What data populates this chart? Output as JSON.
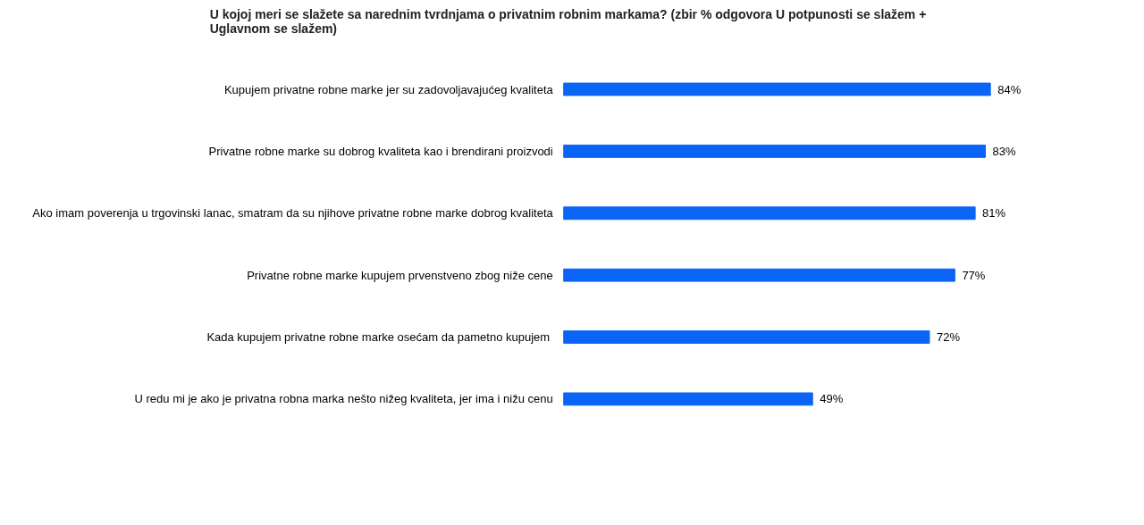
{
  "chart_data": {
    "type": "bar",
    "orientation": "horizontal",
    "title": "U kojoj meri se slažete sa narednim tvrdnjama o privatnim robnim markama? (zbir % odgovora U potpunosti se slažem + Uglavnom se slažem)",
    "categories": [
      "Kupujem privatne robne marke jer su zadovoljavajućeg kvaliteta",
      "Privatne robne marke su dobrog kvaliteta kao i brendirani proizvodi",
      "Ako imam poverenja u trgovinski lanac, smatram da su njihove privatne robne marke dobrog kvaliteta",
      "Privatne robne marke kupujem prvenstveno zbog niže cene",
      "Kada kupujem privatne robne marke osećam  da pametno kupujem",
      "U redu mi je ako je privatna robna marka nešto nižeg kvaliteta, jer ima i nižu cenu"
    ],
    "values": [
      84,
      83,
      81,
      77,
      72,
      49
    ],
    "value_labels": [
      "84%",
      "83%",
      "81%",
      "77%",
      "72%",
      "49%"
    ],
    "color": "#0a64f5",
    "grid": false
  }
}
